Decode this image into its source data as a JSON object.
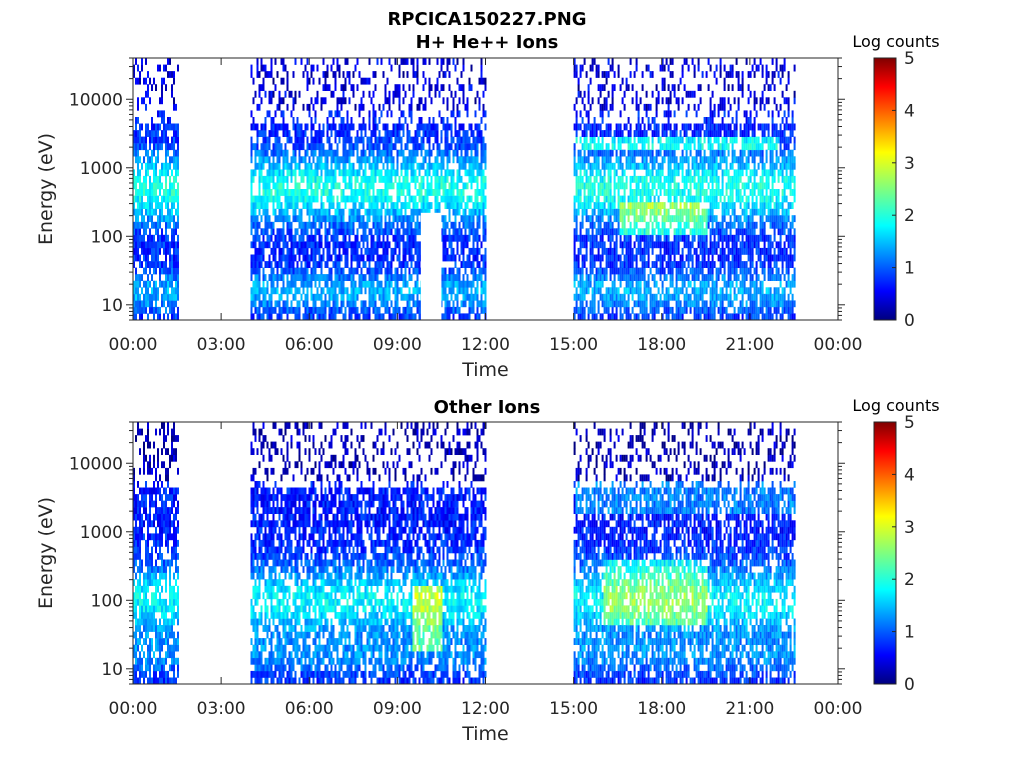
{
  "figure_title": "RPCICA150227.PNG",
  "chart_data": [
    {
      "type": "heatmap",
      "title": "H+ He++ Ions",
      "xlabel": "Time",
      "ylabel": "Energy (eV)",
      "y_scale": "log",
      "ylim": [
        6,
        40000
      ],
      "xlim": [
        "00:00",
        "24:00"
      ],
      "x_ticks": [
        "00:00",
        "03:00",
        "06:00",
        "09:00",
        "12:00",
        "15:00",
        "18:00",
        "21:00",
        "00:00"
      ],
      "y_ticks": [
        "10",
        "100",
        "1000",
        "10000"
      ],
      "y_tick_values": [
        10,
        100,
        1000,
        10000
      ],
      "colorbar": {
        "label": "Log counts",
        "min": 0,
        "max": 5,
        "ticks": [
          "0",
          "1",
          "2",
          "3",
          "4",
          "5"
        ]
      },
      "data_intervals_hours": [
        [
          0,
          1.5
        ],
        [
          4,
          12
        ],
        [
          15,
          22.5
        ]
      ],
      "colormap": "jet"
    },
    {
      "type": "heatmap",
      "title": "Other Ions",
      "xlabel": "Time",
      "ylabel": "Energy (eV)",
      "y_scale": "log",
      "ylim": [
        6,
        40000
      ],
      "xlim": [
        "00:00",
        "24:00"
      ],
      "x_ticks": [
        "00:00",
        "03:00",
        "06:00",
        "09:00",
        "12:00",
        "15:00",
        "18:00",
        "21:00",
        "00:00"
      ],
      "y_ticks": [
        "10",
        "100",
        "1000",
        "10000"
      ],
      "y_tick_values": [
        10,
        100,
        1000,
        10000
      ],
      "colorbar": {
        "label": "Log counts",
        "min": 0,
        "max": 5,
        "ticks": [
          "0",
          "1",
          "2",
          "3",
          "4",
          "5"
        ]
      },
      "data_intervals_hours": [
        [
          0,
          1.5
        ],
        [
          4,
          12
        ],
        [
          15,
          22.5
        ]
      ],
      "colormap": "jet"
    }
  ]
}
